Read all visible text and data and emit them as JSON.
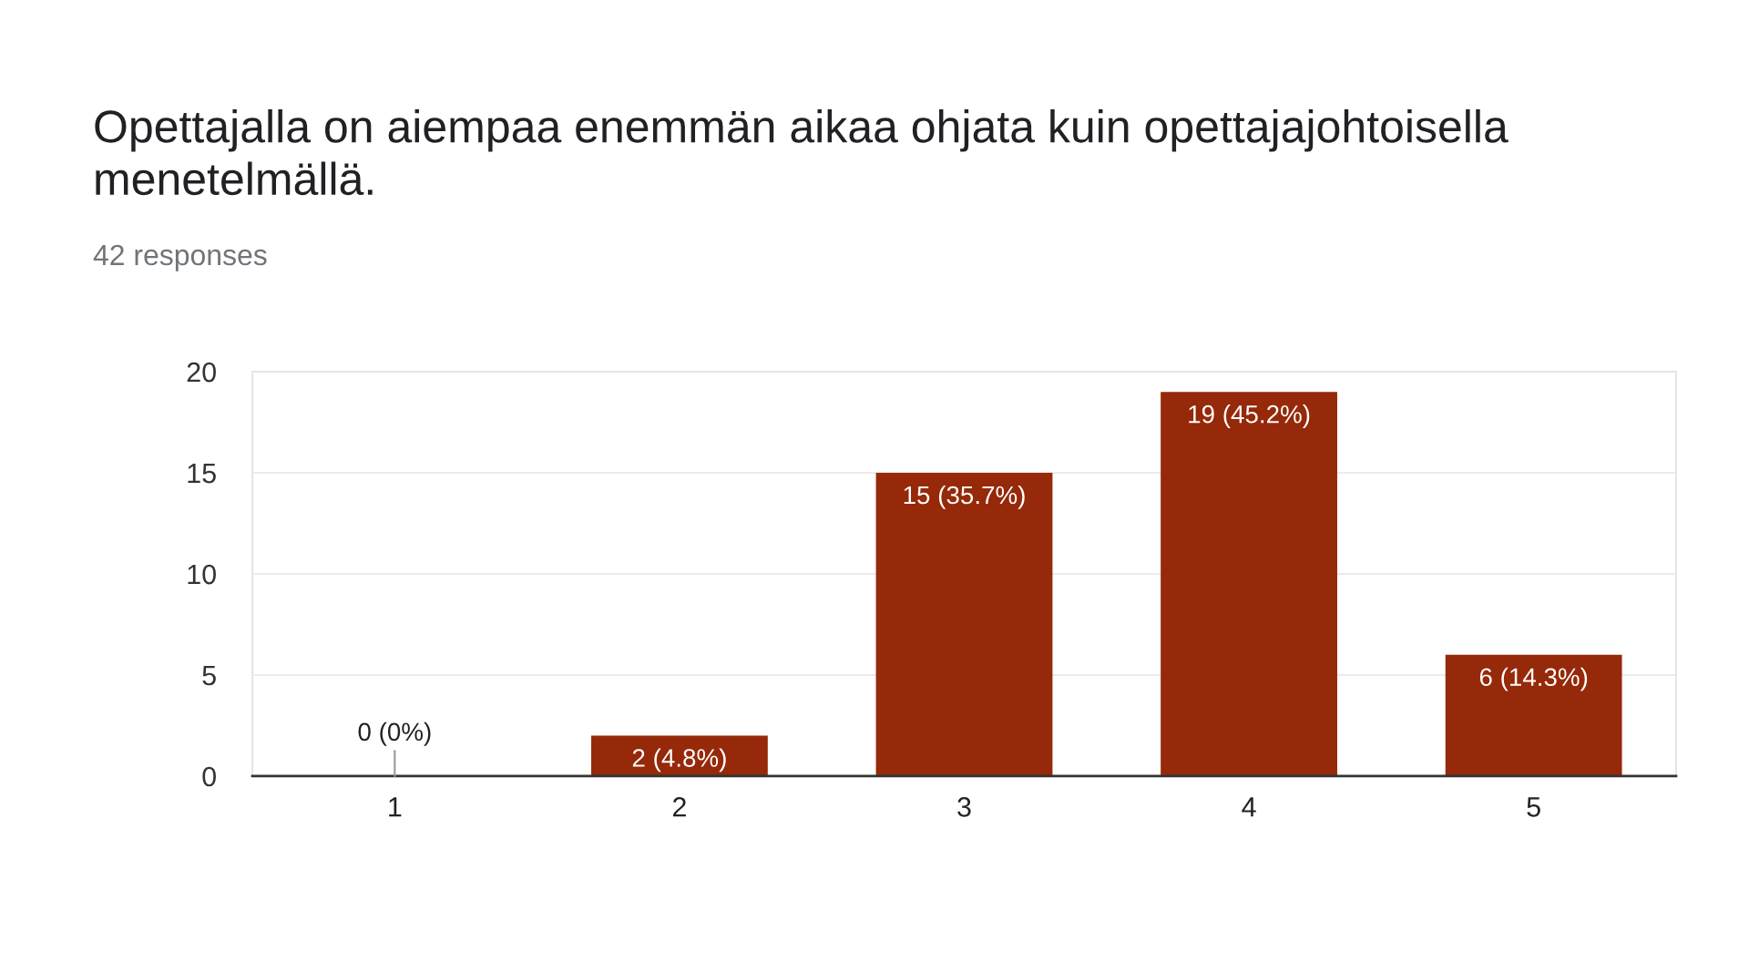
{
  "chart_data": {
    "type": "bar",
    "title": "Opettajalla on aiempaa enemmän aikaa ohjata kuin opettajajohtoisella menetelmällä.",
    "subtitle": "42 responses",
    "categories": [
      "1",
      "2",
      "3",
      "4",
      "5"
    ],
    "values": [
      0,
      2,
      15,
      19,
      6
    ],
    "value_labels": [
      "0 (0%)",
      "2 (4.8%)",
      "15 (35.7%)",
      "19 (45.2%)",
      "6 (14.3%)"
    ],
    "color": "#952909",
    "ylim": [
      0,
      20
    ],
    "yticks": [
      0,
      5,
      10,
      15,
      20
    ],
    "grid": "y"
  }
}
